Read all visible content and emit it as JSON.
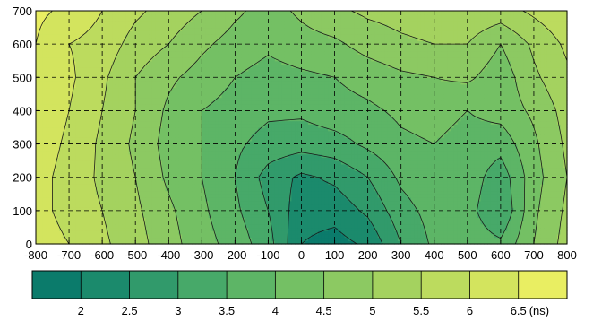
{
  "chart_data": {
    "type": "heatmap",
    "title": "",
    "xlabel": "",
    "ylabel": "",
    "xlim": [
      -800,
      800
    ],
    "ylim": [
      0,
      700
    ],
    "x_ticks": [
      -800,
      -700,
      -600,
      -500,
      -400,
      -300,
      -200,
      -100,
      0,
      100,
      200,
      300,
      400,
      500,
      600,
      700,
      800
    ],
    "y_ticks": [
      0,
      100,
      200,
      300,
      400,
      500,
      600,
      700
    ],
    "grid": true,
    "grid_style": "dashed",
    "x": [
      -800,
      -700,
      -600,
      -500,
      -400,
      -300,
      -200,
      -100,
      0,
      100,
      200,
      300,
      400,
      500,
      600,
      700,
      800
    ],
    "y": [
      0,
      100,
      200,
      300,
      400,
      500,
      600,
      700
    ],
    "z": [
      [
        6.3,
        6.0,
        5.6,
        5.2,
        4.7,
        4.2,
        3.8,
        3.2,
        2.0,
        1.8,
        2.1,
        3.0,
        3.6,
        3.8,
        3.6,
        4.5,
        5.2
      ],
      [
        6.2,
        5.8,
        5.5,
        5.1,
        4.6,
        4.1,
        3.6,
        3.0,
        2.2,
        2.2,
        2.6,
        3.3,
        3.7,
        3.7,
        3.0,
        4.4,
        5.1
      ],
      [
        6.2,
        5.8,
        5.4,
        5.0,
        4.4,
        4.0,
        3.5,
        2.8,
        2.4,
        2.6,
        3.0,
        3.6,
        3.9,
        3.8,
        3.2,
        4.3,
        5.0
      ],
      [
        6.3,
        5.9,
        5.4,
        4.9,
        4.3,
        4.0,
        3.6,
        3.3,
        3.2,
        3.3,
        3.6,
        3.9,
        4.0,
        3.8,
        3.7,
        4.4,
        5.1
      ],
      [
        6.4,
        6.0,
        5.5,
        5.0,
        4.4,
        4.0,
        3.8,
        3.6,
        3.6,
        3.8,
        3.9,
        4.1,
        4.2,
        4.0,
        4.2,
        4.6,
        5.2
      ],
      [
        6.5,
        6.1,
        5.6,
        5.0,
        4.6,
        4.3,
        4.0,
        3.8,
        3.9,
        4.0,
        4.2,
        4.4,
        4.5,
        4.6,
        4.2,
        4.9,
        5.4
      ],
      [
        6.5,
        6.0,
        5.8,
        5.3,
        5.0,
        4.6,
        4.3,
        4.1,
        4.3,
        4.4,
        4.7,
        4.9,
        5.0,
        5.0,
        4.5,
        5.1,
        5.6
      ],
      [
        6.6,
        6.4,
        6.0,
        5.6,
        5.3,
        5.0,
        4.6,
        4.3,
        4.6,
        4.9,
        5.1,
        5.2,
        5.3,
        5.4,
        5.3,
        5.6,
        5.9
      ]
    ],
    "colorbar": {
      "ticks": [
        2,
        2.5,
        3,
        3.5,
        4,
        4.5,
        5,
        5.5,
        6,
        6.5
      ],
      "unit": "(ns)",
      "levels": [
        1.5,
        2.0,
        2.5,
        3.0,
        3.5,
        4.0,
        4.5,
        5.0,
        5.5,
        6.0,
        6.5,
        7.0
      ],
      "colors": [
        "#0b7b6b",
        "#1b8a6c",
        "#319a6b",
        "#47a969",
        "#5db566",
        "#74c064",
        "#8cc962",
        "#a4d25f",
        "#bcdb5e",
        "#d3e45e",
        "#e9ee62",
        "#f9f766"
      ]
    }
  }
}
